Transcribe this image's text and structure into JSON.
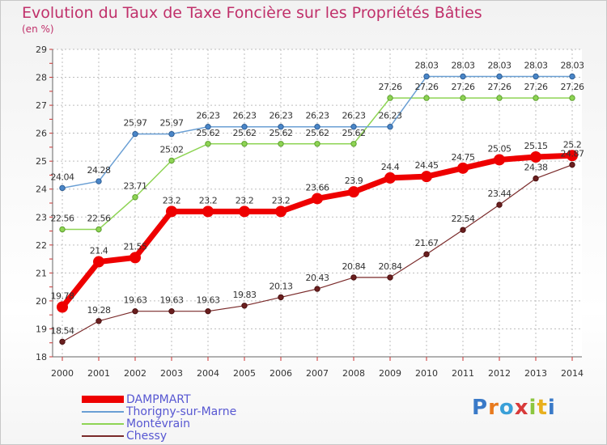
{
  "title": "Evolution du Taux de Taxe Foncière sur les Propriétés Bâties",
  "unit": "(en %)",
  "logo": "Proxiti",
  "chart_data": {
    "type": "line",
    "ylim": [
      18,
      29
    ],
    "yticks": [
      18,
      19,
      20,
      21,
      22,
      23,
      24,
      25,
      26,
      27,
      28,
      29
    ],
    "ytick_labels": [
      "18",
      "19",
      "20",
      "21",
      "22",
      "23",
      "24",
      "25",
      "26",
      "27",
      "28",
      "29"
    ],
    "x": [
      "2000",
      "2001",
      "2002",
      "2003",
      "2004",
      "2005",
      "2006",
      "2007",
      "2008",
      "2009",
      "2010",
      "2011",
      "2012",
      "2013",
      "2014"
    ],
    "grid": true,
    "legend_position": "bottom",
    "series": [
      {
        "name": "DAMPMART",
        "color": "#ee0000",
        "values": [
          19.78,
          21.4,
          21.55,
          23.2,
          23.2,
          23.2,
          23.2,
          23.66,
          23.9,
          24.4,
          24.45,
          24.75,
          25.05,
          25.15,
          25.2
        ],
        "labels": [
          "19.78",
          "21.4",
          "21.55",
          "23.2",
          "23.2",
          "23.2",
          "23.2",
          "23.66",
          "23.9",
          "24.4",
          "24.45",
          "24.75",
          "25.05",
          "25.15",
          "25.2"
        ]
      },
      {
        "name": "Thorigny-sur-Marne",
        "color": "#6a9fd4",
        "values": [
          24.04,
          24.28,
          25.97,
          25.97,
          26.23,
          26.23,
          26.23,
          26.23,
          26.23,
          26.23,
          28.03,
          28.03,
          28.03,
          28.03,
          28.03
        ],
        "labels": [
          "24.04",
          "24.28",
          "25.97",
          "25.97",
          "26.23",
          "26.23",
          "26.23",
          "26.23",
          "26.23",
          "26.23",
          "28.03",
          "28.03",
          "28.03",
          "28.03",
          "28.03"
        ]
      },
      {
        "name": "Montévrain",
        "color": "#8ed454",
        "values": [
          22.56,
          22.56,
          23.71,
          25.02,
          25.62,
          25.62,
          25.62,
          25.62,
          25.62,
          27.26,
          27.26,
          27.26,
          27.26,
          27.26,
          27.26
        ],
        "labels": [
          "22.56",
          "22.56",
          "23.71",
          "25.02",
          "25.62",
          "25.62",
          "25.62",
          "25.62",
          "25.62",
          "27.26",
          "27.26",
          "27.26",
          "27.26",
          "27.26",
          "27.26"
        ]
      },
      {
        "name": "Chessy",
        "color": "#7a2a2a",
        "values": [
          18.54,
          19.28,
          19.63,
          19.63,
          19.63,
          19.83,
          20.13,
          20.43,
          20.84,
          20.84,
          21.67,
          22.54,
          23.44,
          24.38,
          24.87
        ],
        "labels": [
          "18.54",
          "19.28",
          "19.63",
          "19.63",
          "19.63",
          "19.83",
          "20.13",
          "20.43",
          "20.84",
          "20.84",
          "21.67",
          "22.54",
          "23.44",
          "24.38",
          "24.87"
        ]
      }
    ]
  }
}
